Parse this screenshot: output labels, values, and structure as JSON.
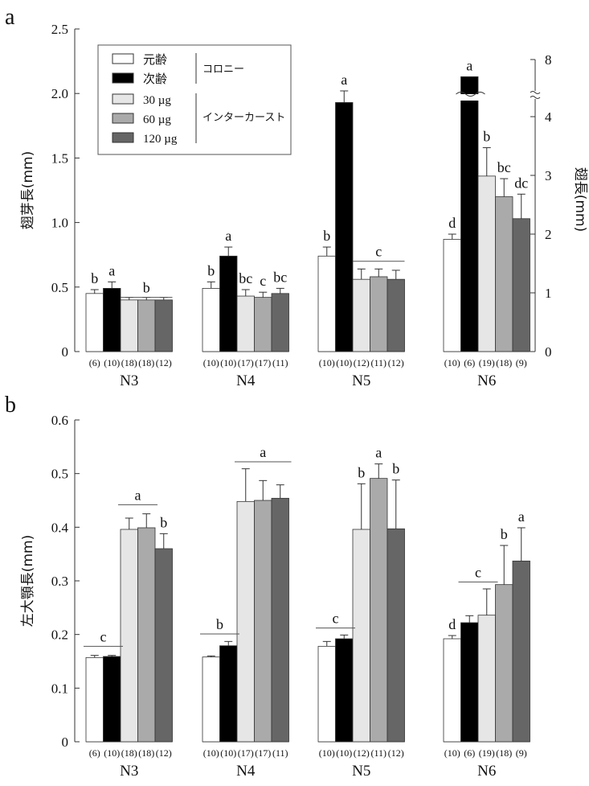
{
  "colors": {
    "元齢": "#ffffff",
    "次齢": "#000000",
    "30 µg": "#e6e6e6",
    "60 µg": "#aaaaaa",
    "120 µg": "#666666",
    "axis": "#333333"
  },
  "chart_data": [
    {
      "panel": "a",
      "type": "bar",
      "ylabel": "翅芽長(mm)",
      "ylabel_right": "翅長(mm)",
      "ylim": [
        0,
        2.5
      ],
      "yticks": [
        "0",
        "0.5",
        "1.0",
        "1.5",
        "2.0",
        "2.5"
      ],
      "ylim_right": [
        0,
        8
      ],
      "yticks_right": [
        "0",
        "1",
        "2",
        "3",
        "4",
        "8"
      ],
      "right_axis_break": true,
      "legend_placement": "top-left",
      "legend_groups": [
        {
          "label": "コロニー",
          "entries": [
            "元齢",
            "次齢"
          ]
        },
        {
          "label": "インターカースト",
          "entries": [
            "30 µg",
            "60 µg",
            "120 µg"
          ]
        }
      ],
      "categories": [
        "N3",
        "N4",
        "N5",
        "N6"
      ],
      "series": [
        {
          "name": "元齢",
          "values": [
            0.45,
            0.49,
            0.74,
            0.87
          ],
          "errors": [
            0.03,
            0.05,
            0.07,
            0.04
          ]
        },
        {
          "name": "次齢",
          "values": [
            0.49,
            0.74,
            1.93,
            null
          ],
          "errors": [
            0.05,
            0.07,
            0.09,
            null
          ],
          "axis_break_values": [
            null,
            null,
            null,
            2.13
          ]
        },
        {
          "name": "30 µg",
          "values": [
            0.4,
            0.43,
            0.56,
            1.36
          ],
          "errors": [
            0.02,
            0.05,
            0.08,
            0.22
          ]
        },
        {
          "name": "60 µg",
          "values": [
            0.4,
            0.42,
            0.58,
            1.2
          ],
          "errors": [
            0.02,
            0.04,
            0.06,
            0.14
          ]
        },
        {
          "name": "120 µg",
          "values": [
            0.4,
            0.45,
            0.56,
            1.03
          ],
          "errors": [
            0.02,
            0.04,
            0.07,
            0.19
          ]
        }
      ],
      "letters": [
        [
          "b",
          "a",
          "",
          "",
          ""
        ],
        [
          "b",
          "a",
          "bc",
          "c",
          "bc"
        ],
        [
          "b",
          "a",
          "",
          "",
          ""
        ],
        [
          "d",
          "a",
          "b",
          "bc",
          "dc"
        ]
      ],
      "group_letters": [
        "b",
        "",
        "c",
        ""
      ],
      "sample_sizes": [
        [
          "(6)",
          "(10)",
          "(18)",
          "(18)",
          "(12)"
        ],
        [
          "(10)",
          "(10)",
          "(17)",
          "(17)",
          "(11)"
        ],
        [
          "(10)",
          "(10)",
          "(12)",
          "(11)",
          "(12)"
        ],
        [
          "(10)",
          "(6)",
          "(19)",
          "(18)",
          "(9)"
        ]
      ]
    },
    {
      "panel": "b",
      "type": "bar",
      "ylabel": "左大顎長(mm)",
      "ylim": [
        0,
        0.6
      ],
      "yticks": [
        "0",
        "0.1",
        "0.2",
        "0.3",
        "0.4",
        "0.5",
        "0.6"
      ],
      "categories": [
        "N3",
        "N4",
        "N5",
        "N6"
      ],
      "series": [
        {
          "name": "元齢",
          "values": [
            0.157,
            0.158,
            0.178,
            0.192
          ],
          "errors": [
            0.004,
            0.002,
            0.009,
            0.006
          ]
        },
        {
          "name": "次齢",
          "values": [
            0.159,
            0.179,
            0.192,
            0.222
          ],
          "errors": [
            0.002,
            0.008,
            0.007,
            0.013
          ]
        },
        {
          "name": "30 µg",
          "values": [
            0.396,
            0.448,
            0.396,
            0.236
          ],
          "errors": [
            0.021,
            0.061,
            0.085,
            0.049
          ]
        },
        {
          "name": "60 µg",
          "values": [
            0.399,
            0.45,
            0.491,
            0.293
          ],
          "errors": [
            0.026,
            0.037,
            0.027,
            0.073
          ]
        },
        {
          "name": "120 µg",
          "values": [
            0.36,
            0.454,
            0.397,
            0.337
          ],
          "errors": [
            0.028,
            0.025,
            0.091,
            0.062
          ]
        }
      ],
      "letters": [
        [
          "",
          "",
          "",
          "",
          "b"
        ],
        [
          "",
          "",
          "",
          "",
          ""
        ],
        [
          "",
          "",
          "b",
          "a",
          "b"
        ],
        [
          "d",
          "",
          "",
          "b",
          "a"
        ]
      ],
      "group_letters": [
        {
          "c": "c",
          "a": "a"
        },
        {
          "b": "b",
          "a": "a"
        },
        {
          "c": "c"
        },
        {
          "c": "c"
        }
      ],
      "sample_sizes": [
        [
          "(6)",
          "(10)",
          "(18)",
          "(18)",
          "(12)"
        ],
        [
          "(10)",
          "(10)",
          "(17)",
          "(17)",
          "(11)"
        ],
        [
          "(10)",
          "(10)",
          "(12)",
          "(11)",
          "(12)"
        ],
        [
          "(10)",
          "(6)",
          "(19)",
          "(18)",
          "(9)"
        ]
      ]
    }
  ],
  "panel_labels": [
    "a",
    "b"
  ]
}
